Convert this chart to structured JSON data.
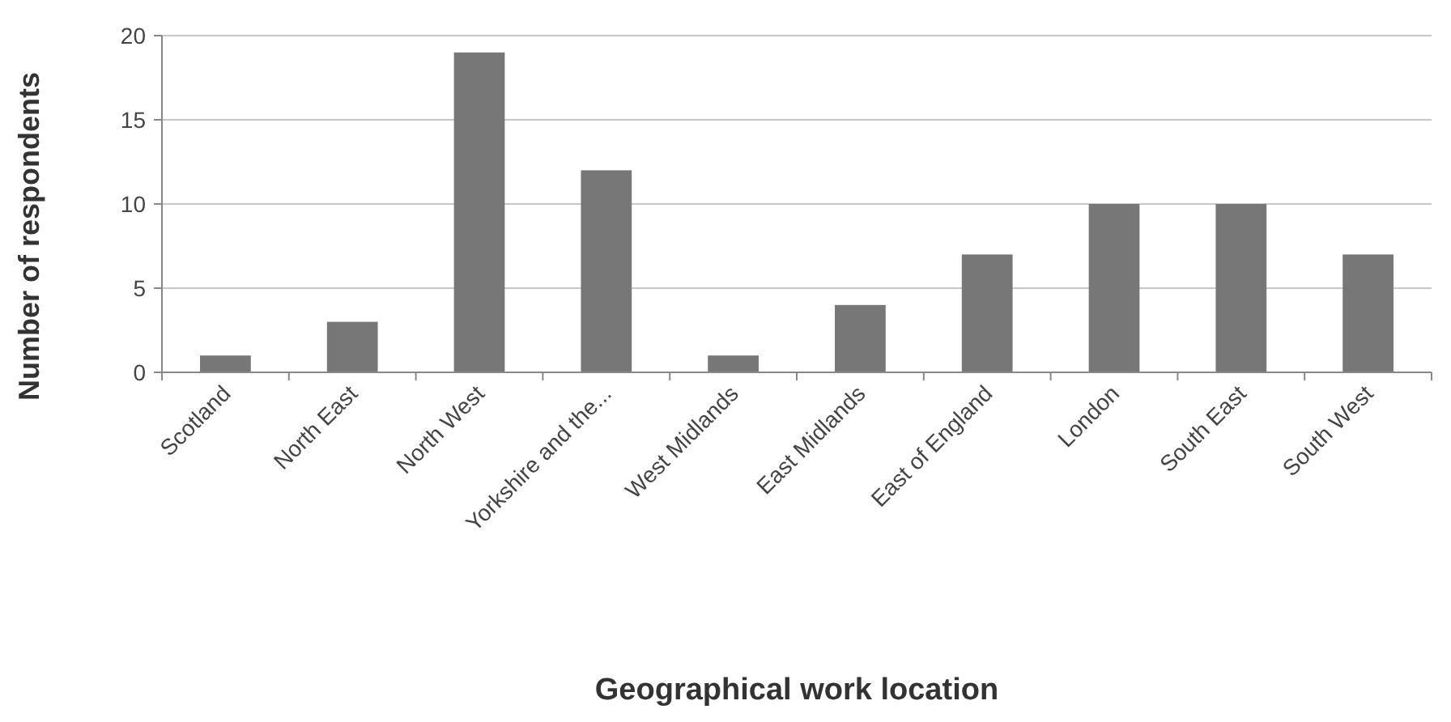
{
  "chart_data": {
    "type": "bar",
    "xlabel": "Geographical work location",
    "ylabel": "Number of respondents",
    "categories": [
      "Scotland",
      "North East",
      "North West",
      "Yorkshire and the...",
      "West Midlands",
      "East Midlands",
      "East of England",
      "London",
      "South East",
      "South West"
    ],
    "values": [
      1,
      3,
      19,
      12,
      1,
      4,
      7,
      10,
      10,
      7
    ],
    "color": "#777777",
    "ylim": [
      0,
      20
    ],
    "yticks": [
      0,
      5,
      10,
      15,
      20
    ],
    "grid": "y"
  }
}
